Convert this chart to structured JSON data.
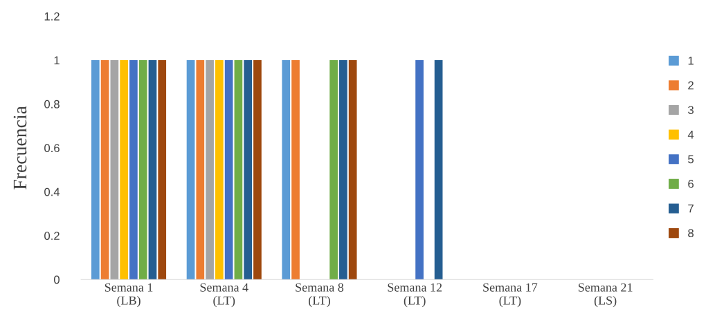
{
  "chart_data": {
    "type": "bar",
    "ylabel": "Frecuencia",
    "categories": [
      "Semana 1\n(LB)",
      "Semana 4\n(LT)",
      "Semana 8\n(LT)",
      "Semana 12\n(LT)",
      "Semana 17\n(LT)",
      "Semana 21\n(LS)"
    ],
    "series": [
      {
        "name": "1",
        "color": "#5b9bd5",
        "values": [
          1,
          1,
          1,
          0,
          0,
          0
        ]
      },
      {
        "name": "2",
        "color": "#ed7d31",
        "values": [
          1,
          1,
          1,
          0,
          0,
          0
        ]
      },
      {
        "name": "3",
        "color": "#a5a5a5",
        "values": [
          1,
          1,
          0,
          0,
          0,
          0
        ]
      },
      {
        "name": "4",
        "color": "#ffc000",
        "values": [
          1,
          1,
          0,
          0,
          0,
          0
        ]
      },
      {
        "name": "5",
        "color": "#4472c4",
        "values": [
          1,
          1,
          0,
          1,
          0,
          0
        ]
      },
      {
        "name": "6",
        "color": "#70ad47",
        "values": [
          1,
          1,
          1,
          0,
          0,
          0
        ]
      },
      {
        "name": "7",
        "color": "#255e91",
        "values": [
          1,
          1,
          1,
          1,
          0,
          0
        ]
      },
      {
        "name": "8",
        "color": "#9e480e",
        "values": [
          1,
          1,
          1,
          0,
          0,
          0
        ]
      }
    ],
    "ylim": [
      0,
      1.2
    ],
    "yticks": [
      0,
      0.2,
      0.4,
      0.6,
      0.8,
      1,
      1.2
    ],
    "grid": false,
    "legend": "right"
  }
}
